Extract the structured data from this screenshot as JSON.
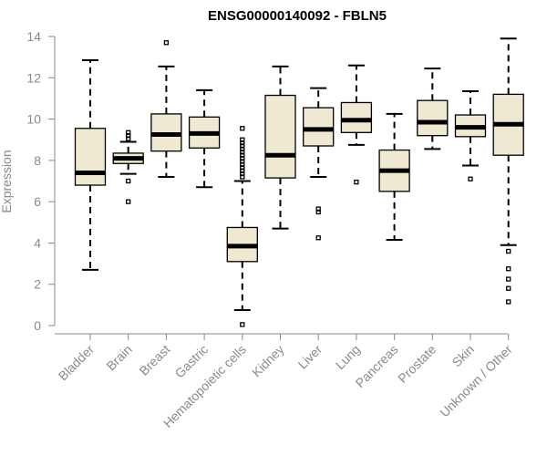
{
  "chart_data": {
    "type": "boxplot",
    "title": "ENSG00000140092 - FBLN5",
    "ylabel": "Expression",
    "xlabel": "",
    "ylim": [
      0,
      14
    ],
    "yticks": [
      0,
      2,
      4,
      6,
      8,
      10,
      12,
      14
    ],
    "colors": {
      "box_fill": "#efe9d2",
      "axis": "#8a8a8a",
      "stroke": "#000000"
    },
    "categories": [
      "Bladder",
      "Brain",
      "Breast",
      "Gastric",
      "Hematopoietic cells",
      "Kidney",
      "Liver",
      "Lung",
      "Pancreas",
      "Prostate",
      "Skin",
      "Unknown / Other"
    ],
    "boxes": [
      {
        "name": "Bladder",
        "whisker_low": 2.7,
        "q1": 6.8,
        "median": 7.4,
        "q3": 9.55,
        "whisker_high": 12.85,
        "outliers": []
      },
      {
        "name": "Brain",
        "whisker_low": 7.35,
        "q1": 7.85,
        "median": 8.1,
        "q3": 8.35,
        "whisker_high": 8.9,
        "outliers": [
          6.0,
          7.0,
          9.05,
          9.2,
          9.35
        ]
      },
      {
        "name": "Breast",
        "whisker_low": 7.2,
        "q1": 8.45,
        "median": 9.25,
        "q3": 10.25,
        "whisker_high": 12.55,
        "outliers": [
          13.7
        ]
      },
      {
        "name": "Gastric",
        "whisker_low": 6.7,
        "q1": 8.6,
        "median": 9.3,
        "q3": 10.1,
        "whisker_high": 11.4,
        "outliers": []
      },
      {
        "name": "Hematopoietic cells",
        "whisker_low": 0.75,
        "q1": 3.1,
        "median": 3.85,
        "q3": 4.75,
        "whisker_high": 7.0,
        "outliers": [
          0.05,
          7.2,
          7.35,
          7.5,
          7.65,
          7.8,
          7.95,
          8.1,
          8.25,
          8.4,
          8.55,
          8.7,
          8.85,
          9.0,
          9.55
        ]
      },
      {
        "name": "Kidney",
        "whisker_low": 4.7,
        "q1": 7.15,
        "median": 8.25,
        "q3": 11.15,
        "whisker_high": 12.55,
        "outliers": []
      },
      {
        "name": "Liver",
        "whisker_low": 7.2,
        "q1": 8.7,
        "median": 9.5,
        "q3": 10.55,
        "whisker_high": 11.5,
        "outliers": [
          4.25,
          5.5,
          5.65
        ]
      },
      {
        "name": "Lung",
        "whisker_low": 8.75,
        "q1": 9.35,
        "median": 9.95,
        "q3": 10.8,
        "whisker_high": 12.6,
        "outliers": [
          6.95
        ]
      },
      {
        "name": "Pancreas",
        "whisker_low": 4.15,
        "q1": 6.5,
        "median": 7.5,
        "q3": 8.5,
        "whisker_high": 10.25,
        "outliers": []
      },
      {
        "name": "Prostate",
        "whisker_low": 8.55,
        "q1": 9.2,
        "median": 9.85,
        "q3": 10.9,
        "whisker_high": 12.45,
        "outliers": []
      },
      {
        "name": "Skin",
        "whisker_low": 7.75,
        "q1": 9.15,
        "median": 9.6,
        "q3": 10.2,
        "whisker_high": 11.35,
        "outliers": [
          7.1
        ]
      },
      {
        "name": "Unknown / Other",
        "whisker_low": 3.9,
        "q1": 8.25,
        "median": 9.75,
        "q3": 11.2,
        "whisker_high": 13.9,
        "outliers": [
          1.15,
          1.8,
          2.25,
          2.75,
          3.6
        ]
      }
    ]
  }
}
